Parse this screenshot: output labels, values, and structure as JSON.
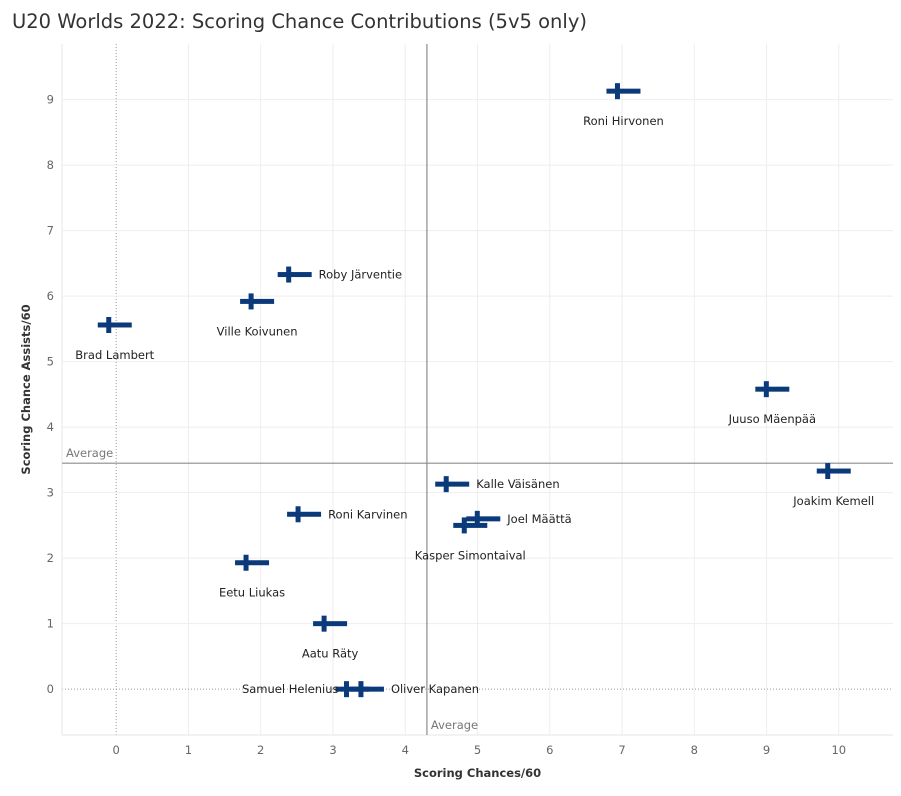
{
  "title": "U20 Worlds 2022: Scoring Chance Contributions (5v5 only)",
  "chart_data": {
    "type": "scatter",
    "title": "U20 Worlds 2022: Scoring Chance Contributions (5v5 only)",
    "xlabel": "Scoring Chances/60",
    "ylabel": "Scoring Chance Assists/60",
    "xlim": [
      -0.75,
      10.75
    ],
    "ylim": [
      -0.7,
      9.85
    ],
    "xticks": [
      0,
      1,
      2,
      3,
      4,
      5,
      6,
      7,
      8,
      9,
      10
    ],
    "yticks": [
      0,
      1,
      2,
      3,
      4,
      5,
      6,
      7,
      8,
      9
    ],
    "reference_lines": {
      "x_average": 4.3,
      "y_average": 3.45,
      "x_label": "Average",
      "y_label": "Average"
    },
    "marker": "finland-flag",
    "marker_colors": {
      "cross": "#0a3a7a",
      "field": "#ffffff"
    },
    "grid": true,
    "points": [
      {
        "name": "Roni Hirvonen",
        "x": 7.02,
        "y": 9.13,
        "label_pos": "below"
      },
      {
        "name": "Roby Järventie",
        "x": 2.47,
        "y": 6.33,
        "label_pos": "right"
      },
      {
        "name": "Ville Koivunen",
        "x": 1.95,
        "y": 5.92,
        "label_pos": "below"
      },
      {
        "name": "Brad Lambert",
        "x": -0.02,
        "y": 5.56,
        "label_pos": "below"
      },
      {
        "name": "Juuso Mäenpää",
        "x": 9.08,
        "y": 4.58,
        "label_pos": "below"
      },
      {
        "name": "Joakim Kemell",
        "x": 9.93,
        "y": 3.33,
        "label_pos": "below"
      },
      {
        "name": "Kalle Väisänen",
        "x": 4.65,
        "y": 3.13,
        "label_pos": "right"
      },
      {
        "name": "Joel Määttä",
        "x": 5.08,
        "y": 2.6,
        "label_pos": "right"
      },
      {
        "name": "Kasper Simontaival",
        "x": 4.9,
        "y": 2.5,
        "label_pos": "below"
      },
      {
        "name": "Roni Karvinen",
        "x": 2.6,
        "y": 2.67,
        "label_pos": "right"
      },
      {
        "name": "Eetu Liukas",
        "x": 1.88,
        "y": 1.93,
        "label_pos": "below"
      },
      {
        "name": "Aatu Räty",
        "x": 2.96,
        "y": 1.0,
        "label_pos": "below"
      },
      {
        "name": "Samuel Helenius",
        "x": 3.27,
        "y": 0.0,
        "label_pos": "left"
      },
      {
        "name": "Oliver Kapanen",
        "x": 3.47,
        "y": 0.0,
        "label_pos": "right"
      }
    ]
  }
}
